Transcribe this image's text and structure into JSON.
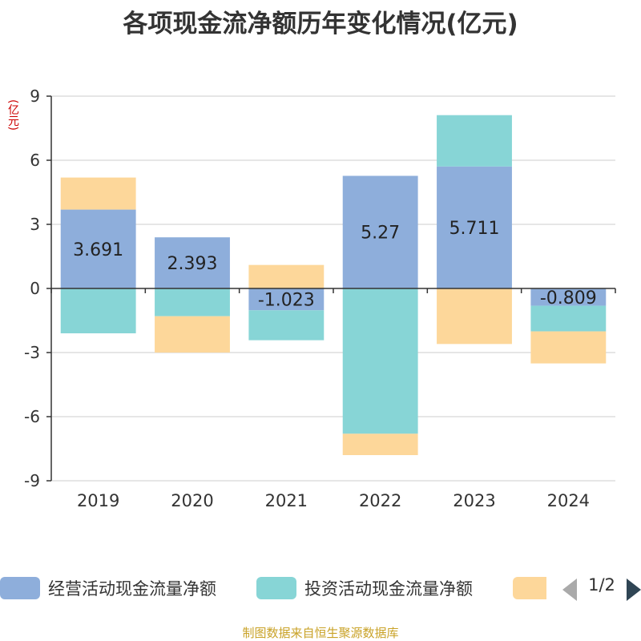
{
  "title": "各项现金流净额历年变化情况(亿元)",
  "unit_label": "(亿元)",
  "source": "制图数据来自恒生聚源数据库",
  "pager": {
    "text": "1/2"
  },
  "legend": [
    {
      "label": "经营活动现金流量净额",
      "color": "#8eaedb"
    },
    {
      "label": "投资活动现金流量净额",
      "color": "#87d5d6"
    },
    {
      "label": "",
      "color": "#fdd79a"
    }
  ],
  "chart_data": {
    "type": "bar",
    "stacked": true,
    "categories": [
      "2019",
      "2020",
      "2021",
      "2022",
      "2023",
      "2024"
    ],
    "ylim": [
      -9,
      9
    ],
    "yticks": [
      9,
      6,
      3,
      0,
      -3,
      -6,
      -9
    ],
    "grid": true,
    "legend_position": "bottom",
    "series": [
      {
        "name": "经营活动现金流量净额",
        "color": "#8eaedb",
        "values": [
          3.691,
          2.393,
          -1.023,
          5.27,
          5.711,
          -0.809
        ],
        "labels": [
          "3.691",
          "2.393",
          "-1.023",
          "5.27",
          "5.711",
          "-0.809"
        ]
      },
      {
        "name": "投资活动现金流量净额",
        "color": "#87d5d6",
        "values": [
          -2.1,
          -1.3,
          -1.4,
          -6.8,
          2.4,
          -1.2
        ]
      },
      {
        "color": "#fdd79a",
        "values": [
          1.5,
          -1.7,
          1.1,
          -1.0,
          -2.6,
          -1.5
        ]
      }
    ]
  }
}
